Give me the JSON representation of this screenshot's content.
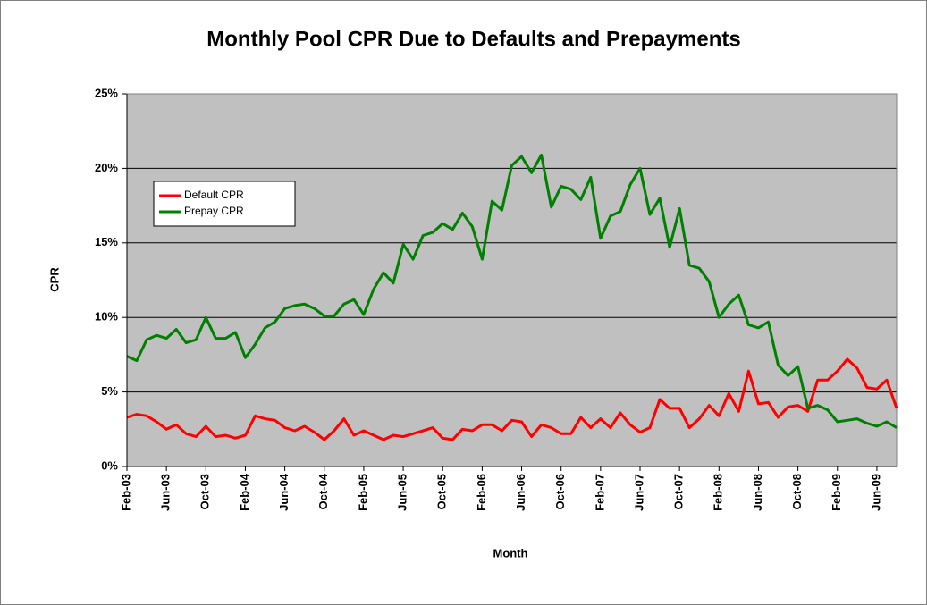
{
  "chart_data": {
    "type": "line",
    "title": "Monthly Pool CPR Due to Defaults and Prepayments",
    "x_label": "Month",
    "y_label": "CPR",
    "categories": [
      "Feb-03",
      null,
      null,
      null,
      "Jun-03",
      null,
      null,
      null,
      "Oct-03",
      null,
      null,
      null,
      "Feb-04",
      null,
      null,
      null,
      "Jun-04",
      null,
      null,
      null,
      "Oct-04",
      null,
      null,
      null,
      "Feb-05",
      null,
      null,
      null,
      "Jun-05",
      null,
      null,
      null,
      "Oct-05",
      null,
      null,
      null,
      "Feb-06",
      null,
      null,
      null,
      "Jun-06",
      null,
      null,
      null,
      "Oct-06",
      null,
      null,
      null,
      "Feb-07",
      null,
      null,
      null,
      "Jun-07",
      null,
      null,
      null,
      "Oct-07",
      null,
      null,
      null,
      "Feb-08",
      null,
      null,
      null,
      "Jun-08",
      null,
      null,
      null,
      "Oct-08",
      null,
      null,
      null,
      "Feb-09",
      null,
      null,
      null,
      "Jun-09",
      null,
      null
    ],
    "series": [
      {
        "name": "Default CPR",
        "color": "#ff0000",
        "values": [
          3.3,
          3.5,
          3.4,
          3.0,
          2.5,
          2.8,
          2.2,
          2.0,
          2.7,
          2.0,
          2.1,
          1.9,
          2.1,
          3.4,
          3.2,
          3.1,
          2.6,
          2.4,
          2.7,
          2.3,
          1.8,
          2.4,
          3.2,
          2.1,
          2.4,
          2.1,
          1.8,
          2.1,
          2.0,
          2.2,
          2.4,
          2.6,
          1.9,
          1.8,
          2.5,
          2.4,
          2.8,
          2.8,
          2.4,
          3.1,
          3.0,
          2.0,
          2.8,
          2.6,
          2.2,
          2.2,
          3.3,
          2.6,
          3.2,
          2.6,
          3.6,
          2.8,
          2.3,
          2.6,
          4.5,
          3.9,
          3.9,
          2.6,
          3.2,
          4.1,
          3.4,
          4.9,
          3.7,
          6.4,
          4.2,
          4.3,
          3.3,
          4.0,
          4.1,
          3.7,
          5.8,
          5.8,
          6.4,
          7.2,
          6.6,
          5.3,
          5.2,
          5.8,
          3.9
        ]
      },
      {
        "name": "Prepay CPR",
        "color": "#008000",
        "values": [
          7.4,
          7.1,
          8.5,
          8.8,
          8.6,
          9.2,
          8.3,
          8.5,
          10.0,
          8.6,
          8.6,
          9.0,
          7.3,
          8.2,
          9.3,
          9.7,
          10.6,
          10.8,
          10.9,
          10.6,
          10.1,
          10.1,
          10.9,
          11.2,
          10.2,
          11.9,
          13.0,
          12.3,
          14.9,
          13.9,
          15.5,
          15.7,
          16.3,
          15.9,
          17.0,
          16.1,
          13.9,
          17.8,
          17.2,
          20.2,
          20.8,
          19.7,
          20.9,
          17.4,
          18.8,
          18.6,
          17.9,
          19.4,
          15.3,
          16.8,
          17.1,
          18.9,
          20.0,
          16.9,
          18.0,
          14.7,
          17.3,
          13.5,
          13.3,
          12.4,
          10.0,
          10.9,
          11.5,
          9.5,
          9.3,
          9.7,
          6.8,
          6.1,
          6.7,
          3.9,
          4.1,
          3.8,
          3.0,
          3.1,
          3.2,
          2.9,
          2.7,
          3.0,
          2.6
        ]
      }
    ],
    "ylim": [
      0,
      25
    ],
    "yticks": [
      {
        "value": 0,
        "label": "0%"
      },
      {
        "value": 5,
        "label": "5%"
      },
      {
        "value": 10,
        "label": "10%"
      },
      {
        "value": 15,
        "label": "15%"
      },
      {
        "value": 20,
        "label": "20%"
      },
      {
        "value": 25,
        "label": "25%"
      }
    ],
    "grid": true,
    "legend": "upper left",
    "plot_background": "#c0c0c0"
  }
}
